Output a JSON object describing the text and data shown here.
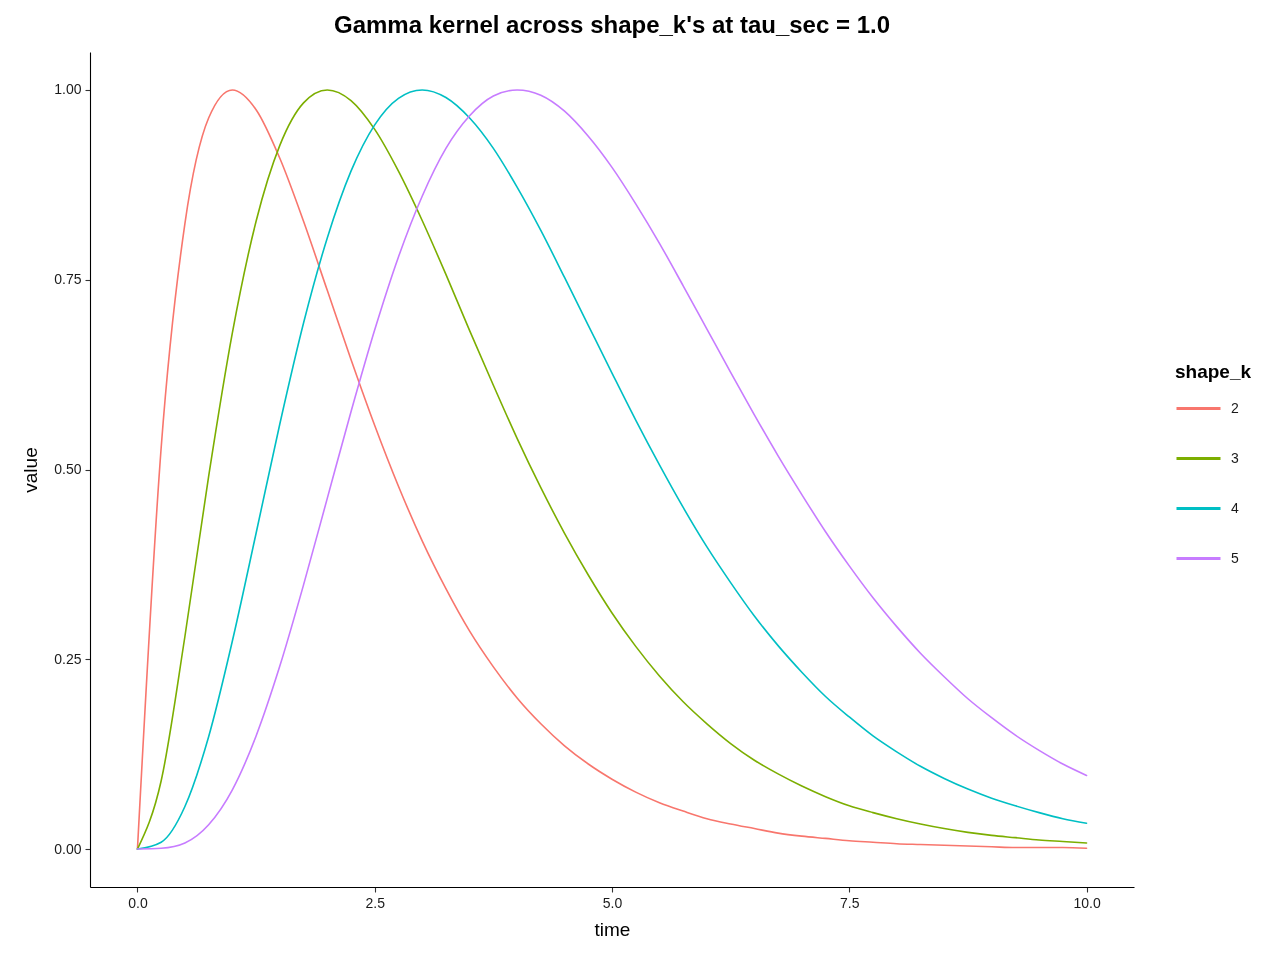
{
  "chart_data": {
    "type": "line",
    "title": "Gamma kernel across shape_k's at tau_sec = 1.0",
    "xlabel": "time",
    "ylabel": "value",
    "legend_title": "shape_k",
    "x": [
      0,
      0.25,
      0.5,
      0.75,
      1,
      1.25,
      1.5,
      1.75,
      2,
      2.25,
      2.5,
      2.75,
      3,
      3.25,
      3.5,
      3.75,
      4,
      4.25,
      4.5,
      4.75,
      5,
      5.25,
      5.5,
      5.75,
      6,
      6.25,
      6.5,
      6.75,
      7,
      7.25,
      7.5,
      7.75,
      8,
      8.25,
      8.5,
      8.75,
      9,
      9.25,
      9.5,
      9.75,
      10
    ],
    "series": [
      {
        "name": "2",
        "color": "#f8766d",
        "values": [
          0,
          0.529,
          0.824,
          0.963,
          1,
          0.974,
          0.91,
          0.827,
          0.736,
          0.645,
          0.558,
          0.478,
          0.406,
          0.343,
          0.287,
          0.24,
          0.199,
          0.165,
          0.136,
          0.112,
          0.092,
          0.075,
          0.061,
          0.05,
          0.04,
          0.033,
          0.027,
          0.021,
          0.017,
          0.014,
          0.011,
          0.009,
          0.007,
          0.006,
          0.005,
          0.004,
          0.003,
          0.002,
          0.002,
          0.002,
          0.001
        ]
      },
      {
        "name": "3",
        "color": "#7cae00",
        "values": [
          0,
          0.09,
          0.28,
          0.491,
          0.68,
          0.827,
          0.927,
          0.983,
          1,
          0.986,
          0.948,
          0.893,
          0.828,
          0.757,
          0.683,
          0.611,
          0.541,
          0.476,
          0.416,
          0.361,
          0.311,
          0.267,
          0.228,
          0.194,
          0.165,
          0.139,
          0.117,
          0.099,
          0.083,
          0.069,
          0.057,
          0.048,
          0.04,
          0.033,
          0.027,
          0.022,
          0.018,
          0.015,
          0.012,
          0.01,
          0.008
        ]
      },
      {
        "name": "4",
        "color": "#00bfc4",
        "values": [
          0,
          0.009,
          0.056,
          0.148,
          0.274,
          0.416,
          0.56,
          0.693,
          0.805,
          0.893,
          0.954,
          0.989,
          1,
          0.99,
          0.963,
          0.923,
          0.872,
          0.815,
          0.753,
          0.69,
          0.627,
          0.565,
          0.506,
          0.45,
          0.398,
          0.351,
          0.307,
          0.268,
          0.233,
          0.201,
          0.174,
          0.149,
          0.128,
          0.109,
          0.093,
          0.079,
          0.067,
          0.057,
          0.048,
          0.04,
          0.034
        ]
      },
      {
        "name": "5",
        "color": "#c77cff",
        "values": [
          0,
          0.001,
          0.008,
          0.032,
          0.078,
          0.149,
          0.241,
          0.348,
          0.462,
          0.576,
          0.684,
          0.78,
          0.86,
          0.923,
          0.966,
          0.992,
          1,
          0.993,
          0.972,
          0.939,
          0.898,
          0.85,
          0.798,
          0.742,
          0.685,
          0.628,
          0.572,
          0.518,
          0.467,
          0.418,
          0.373,
          0.331,
          0.293,
          0.258,
          0.227,
          0.198,
          0.173,
          0.15,
          0.13,
          0.112,
          0.097
        ]
      }
    ],
    "xlim": [
      -0.5,
      10.5
    ],
    "ylim": [
      -0.05,
      1.05
    ],
    "xticks": [
      {
        "value": 0,
        "label": "0.0"
      },
      2.5,
      {
        "value": 5,
        "label": "5.0"
      },
      7.5,
      {
        "value": 10,
        "label": "10.0"
      }
    ],
    "yticks": [
      {
        "value": 0,
        "label": "0.00"
      },
      0.25,
      {
        "value": 0.5,
        "label": "0.50"
      },
      0.75,
      {
        "value": 1,
        "label": "1.00"
      }
    ],
    "legend": "right",
    "line_style": "solid"
  }
}
